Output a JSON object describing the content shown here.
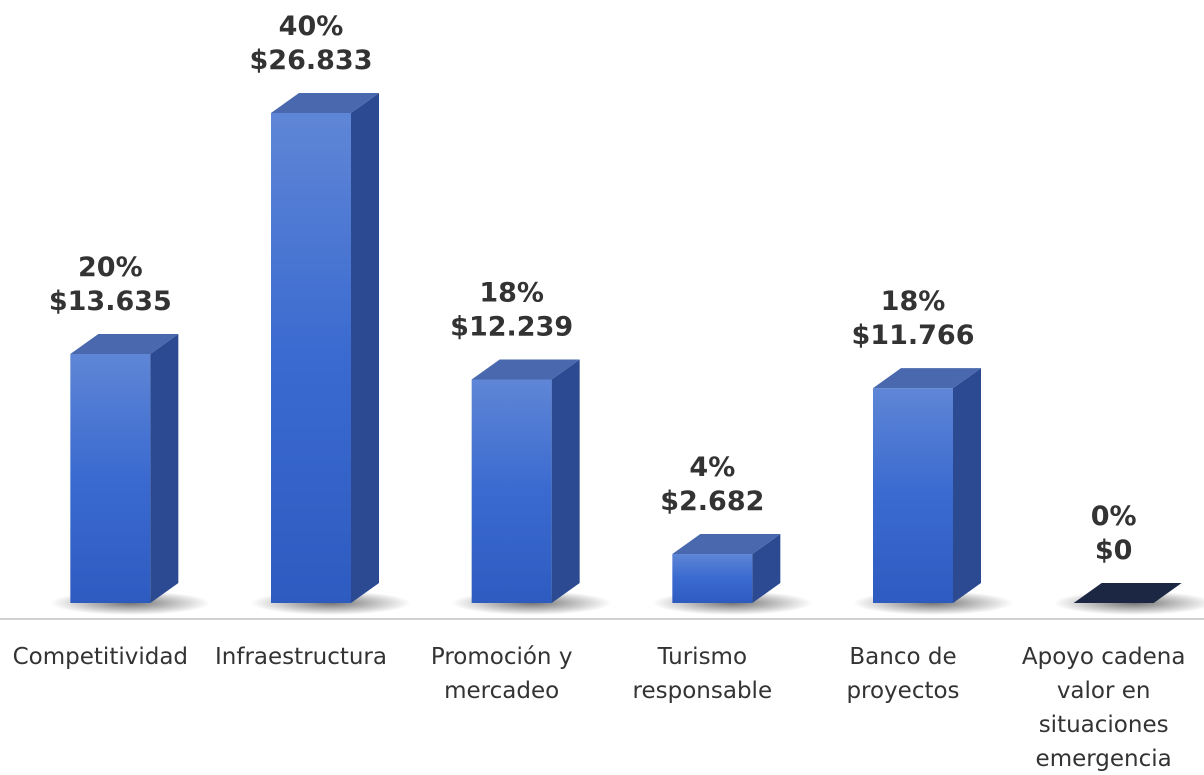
{
  "chart_data": {
    "type": "bar3d",
    "categories": [
      "Competitividad",
      "Infraestructura",
      "Promoción y mercadeo",
      "Turismo responsable",
      "Banco de proyectos",
      "Apoyo cadena valor en situaciones emergencia"
    ],
    "values": [
      13635,
      26833,
      12239,
      2682,
      11766,
      0
    ],
    "value_labels": [
      "$13.635",
      "$26.833",
      "$12.239",
      "$2.682",
      "$11.766",
      "$0"
    ],
    "percentages": [
      20,
      40,
      18,
      4,
      18,
      0
    ],
    "percentage_labels": [
      "20%",
      "40%",
      "18%",
      "4%",
      "18%",
      "0%"
    ],
    "color": "#3f6fd0"
  }
}
